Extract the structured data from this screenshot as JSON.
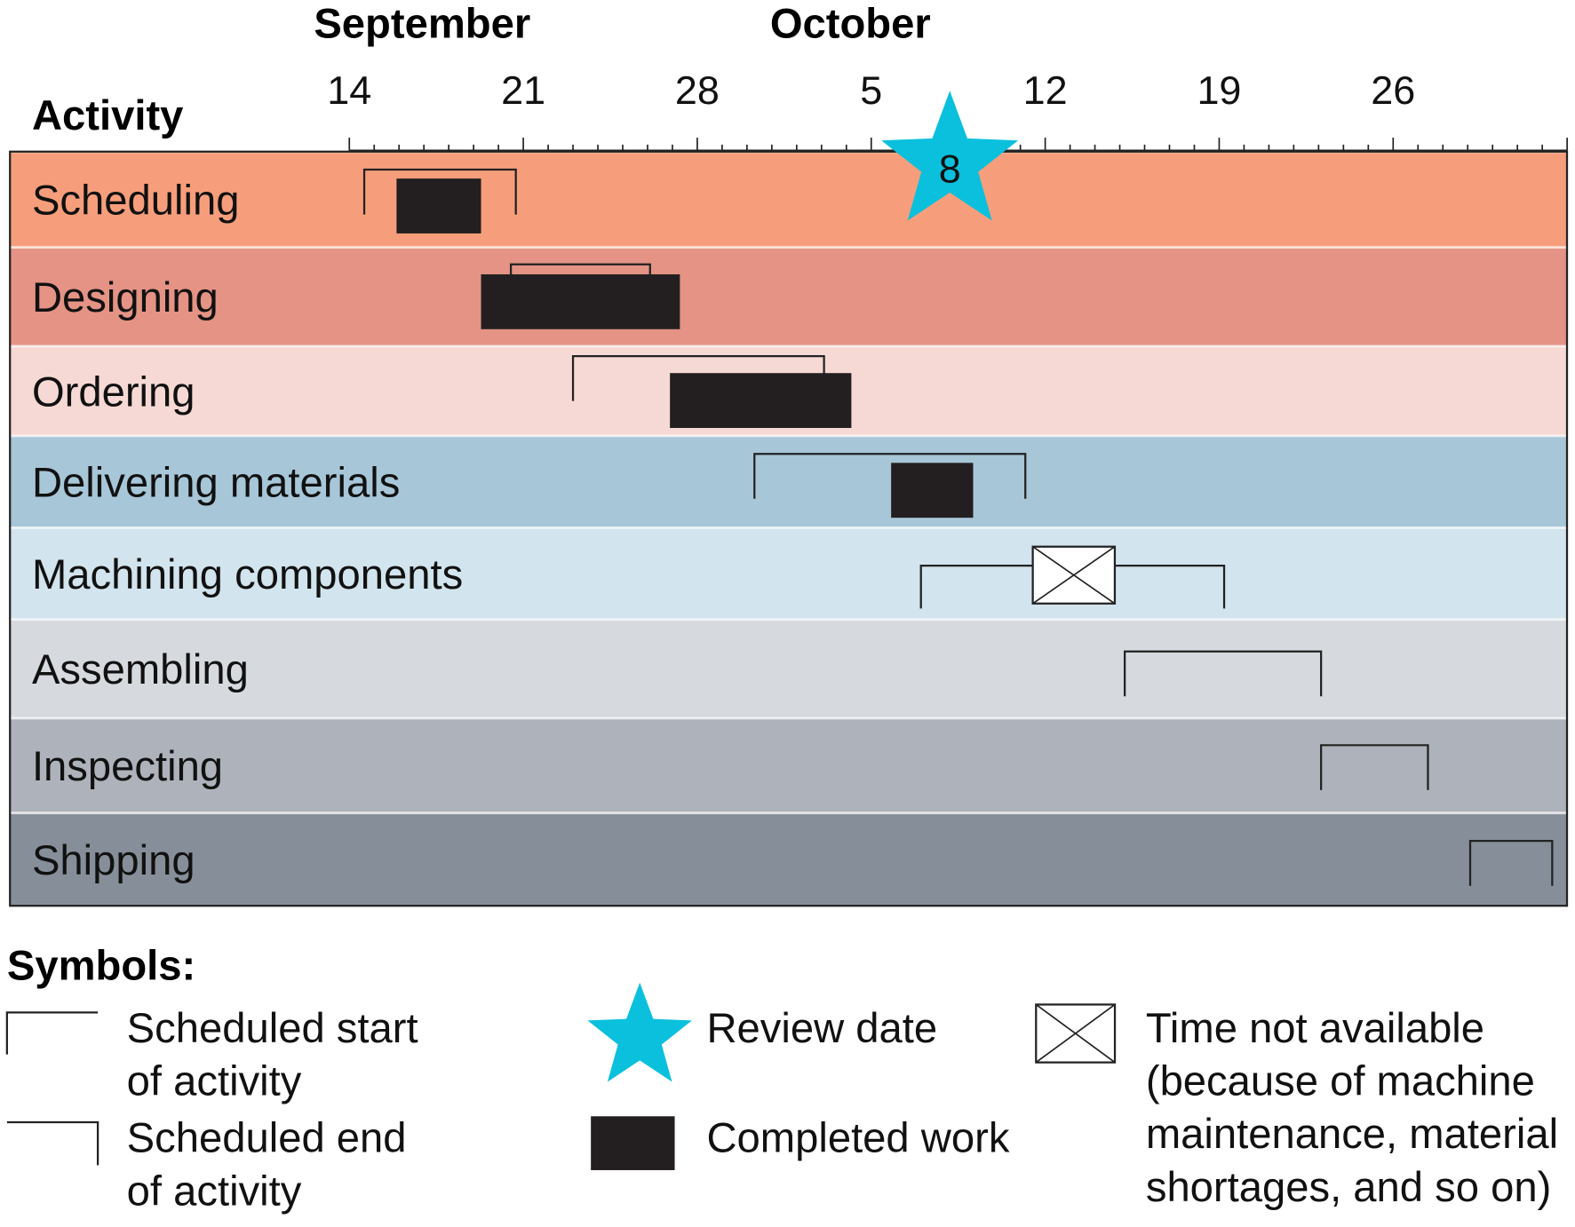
{
  "chart_data": {
    "type": "gantt",
    "header": {
      "activity_label": "Activity",
      "months": [
        {
          "label": "September",
          "center": "Sep 18"
        },
        {
          "label": "October",
          "center": "Oct 8"
        }
      ]
    },
    "x_axis": {
      "start": "Sep 14",
      "end": "Nov 2",
      "major_ticks": [
        {
          "label": "14",
          "date": "Sep 14"
        },
        {
          "label": "21",
          "date": "Sep 21"
        },
        {
          "label": "28",
          "date": "Sep 28"
        },
        {
          "label": "5",
          "date": "Oct 5"
        },
        {
          "label": "12",
          "date": "Oct 12"
        },
        {
          "label": "19",
          "date": "Oct 19"
        },
        {
          "label": "26",
          "date": "Oct 26"
        }
      ],
      "minor_tick_interval_days": 1
    },
    "review": {
      "date": "Oct 8",
      "label": "8",
      "color": "#0bc0dc"
    },
    "activities": [
      {
        "name": "Scheduling",
        "color": "#f69e7b",
        "scheduled": [
          "Sep 14.6",
          "Sep 20.7"
        ],
        "completed": [
          "Sep 15.9",
          "Sep 19.3"
        ]
      },
      {
        "name": "Designing",
        "color": "#e49385",
        "scheduled": [
          "Sep 20.5",
          "Sep 26.1"
        ],
        "completed": [
          "Sep 19.3",
          "Sep 27.3"
        ]
      },
      {
        "name": "Ordering",
        "color": "#f6d9d4",
        "scheduled": [
          "Sep 23",
          "Oct 3.1"
        ],
        "completed": [
          "Sep 26.9",
          "Oct 4.2"
        ]
      },
      {
        "name": "Delivering materials",
        "color": "#a7c6d8",
        "scheduled": [
          "Sep 30.3",
          "Oct 11.2"
        ],
        "completed": [
          "Oct 5.8",
          "Oct 9.1"
        ]
      },
      {
        "name": "Machining components",
        "color": "#d2e4ed",
        "scheduled": [
          "Oct 7",
          "Oct 19.2"
        ],
        "unavailable": [
          "Oct 11.5",
          "Oct 14.8"
        ]
      },
      {
        "name": "Assembling",
        "color": "#d6dade",
        "scheduled": [
          "Oct 15.2",
          "Oct 23.1"
        ]
      },
      {
        "name": "Inspecting",
        "color": "#aeb2ba",
        "scheduled": [
          "Oct 23.1",
          "Oct 27.4"
        ]
      },
      {
        "name": "Shipping",
        "color": "#868f99",
        "scheduled": [
          "Oct 29.1",
          "Nov 1.4"
        ]
      }
    ],
    "colors": {
      "completed": "#231f20",
      "review": "#0bc0dc"
    }
  },
  "legend": {
    "title": "Symbols:",
    "start": [
      "Scheduled start",
      "of activity"
    ],
    "end": [
      "Scheduled end",
      "of activity"
    ],
    "review": "Review date",
    "completed": "Completed work",
    "unavailable": [
      "Time not available",
      "(because of machine",
      "maintenance, material",
      "shortages, and so on)"
    ]
  }
}
